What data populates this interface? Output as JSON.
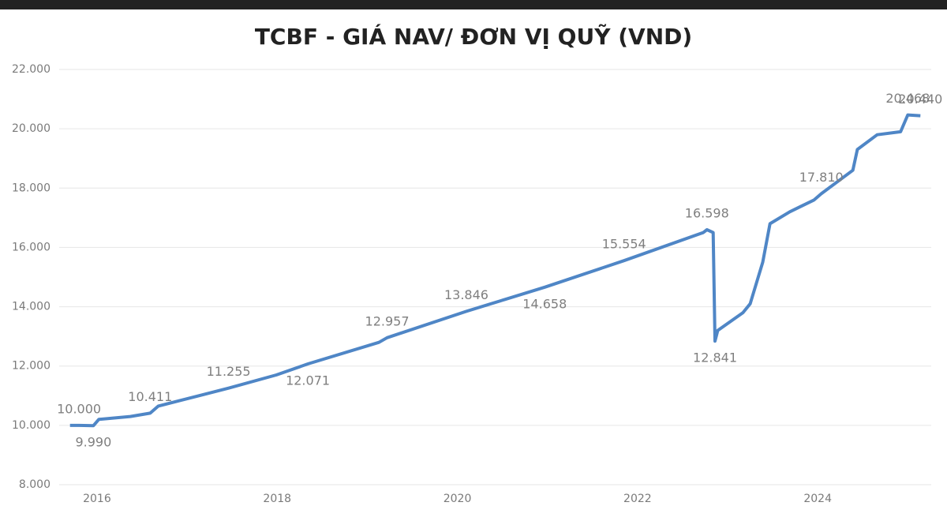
{
  "chart_data": {
    "type": "line",
    "title": "TCBF - GIÁ NAV/ ĐƠN VỊ QUỸ (VND)",
    "x": [
      2015.7,
      2015.8,
      2015.96,
      2016.02,
      2016.37,
      2016.59,
      2016.68,
      2017.46,
      2017.99,
      2018.34,
      2019.13,
      2019.22,
      2020.1,
      2020.97,
      2021.85,
      2022.73,
      2022.77,
      2022.84,
      2022.86,
      2022.89,
      2023.17,
      2023.25,
      2023.39,
      2023.47,
      2023.69,
      2023.96,
      2024.04,
      2024.39,
      2024.44,
      2024.66,
      2024.92,
      2025.0,
      2025.14
    ],
    "series": [
      {
        "name": "TCBF",
        "color": "#4f86c6",
        "values": [
          10000,
          10000,
          9990,
          10200,
          10300,
          10411,
          10650,
          11255,
          11700,
          12071,
          12800,
          12957,
          13846,
          14658,
          15554,
          16500,
          16598,
          16500,
          12841,
          13200,
          13800,
          14100,
          15500,
          16800,
          17200,
          17600,
          17810,
          18600,
          19300,
          19800,
          19900,
          20468,
          20440
        ],
        "value_labels": [
          null,
          "10.000",
          "9.990",
          null,
          null,
          "10.411",
          null,
          "11.255",
          null,
          "12.071",
          null,
          "12.957",
          "13.846",
          "14.658",
          "15.554",
          null,
          "16.598",
          null,
          "12.841",
          null,
          null,
          null,
          null,
          null,
          null,
          null,
          "17.810",
          null,
          null,
          null,
          null,
          "20.468",
          "20.440"
        ]
      }
    ],
    "xlim": [
      2015.58,
      2025.26
    ],
    "xticks": [
      2016,
      2018,
      2020,
      2022,
      2024
    ],
    "ylim": [
      8000,
      22000
    ],
    "yticks": [
      {
        "value": 8000,
        "label": "8.000"
      },
      {
        "value": 10000,
        "label": "10.000"
      },
      {
        "value": 12000,
        "label": "12.000"
      },
      {
        "value": 14000,
        "label": "14.000"
      },
      {
        "value": 16000,
        "label": "16.000"
      },
      {
        "value": 18000,
        "label": "18.000"
      },
      {
        "value": 20000,
        "label": "20.000"
      },
      {
        "value": 22000,
        "label": "22.000"
      }
    ],
    "grid": true
  }
}
